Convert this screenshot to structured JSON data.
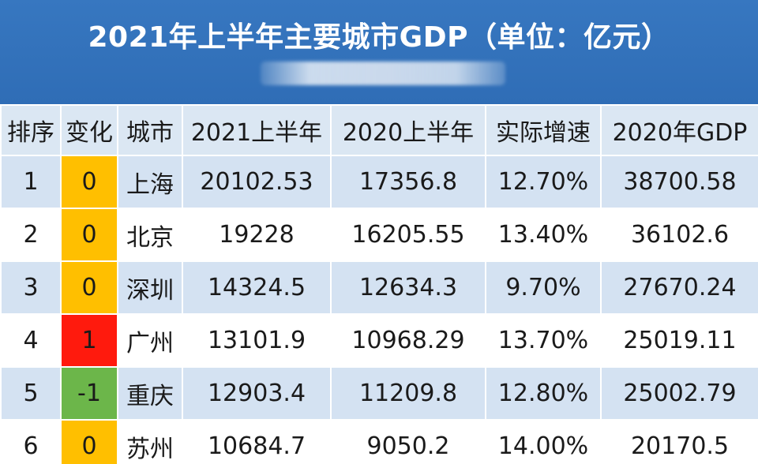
{
  "title": "2021年上半年主要城市GDP（单位：亿元）",
  "headers": {
    "rank": "排序",
    "change": "变化",
    "city": "城市",
    "h1_2021": "2021上半年",
    "h1_2020": "2020上半年",
    "growth": "实际增速",
    "gdp_2020": "2020年GDP"
  },
  "colors": {
    "banner": "#3373bb",
    "row_alt": "#d4e2f2",
    "change_flat": "#ffbf00",
    "change_up": "#ff1a0d",
    "change_down": "#6cb64a"
  },
  "rows": [
    {
      "rank": "1",
      "change": "0",
      "city": "上海",
      "h1_2021": "20102.53",
      "h1_2020": "17356.8",
      "growth": "12.70%",
      "gdp_2020": "38700.58"
    },
    {
      "rank": "2",
      "change": "0",
      "city": "北京",
      "h1_2021": "19228",
      "h1_2020": "16205.55",
      "growth": "13.40%",
      "gdp_2020": "36102.6"
    },
    {
      "rank": "3",
      "change": "0",
      "city": "深圳",
      "h1_2021": "14324.5",
      "h1_2020": "12634.3",
      "growth": "9.70%",
      "gdp_2020": "27670.24"
    },
    {
      "rank": "4",
      "change": "1",
      "city": "广州",
      "h1_2021": "13101.9",
      "h1_2020": "10968.29",
      "growth": "13.70%",
      "gdp_2020": "25019.11"
    },
    {
      "rank": "5",
      "change": "-1",
      "city": "重庆",
      "h1_2021": "12903.4",
      "h1_2020": "11209.8",
      "growth": "12.80%",
      "gdp_2020": "25002.79"
    },
    {
      "rank": "6",
      "change": "0",
      "city": "苏州",
      "h1_2021": "10684.7",
      "h1_2020": "9050.2",
      "growth": "14.00%",
      "gdp_2020": "20170.5"
    }
  ]
}
